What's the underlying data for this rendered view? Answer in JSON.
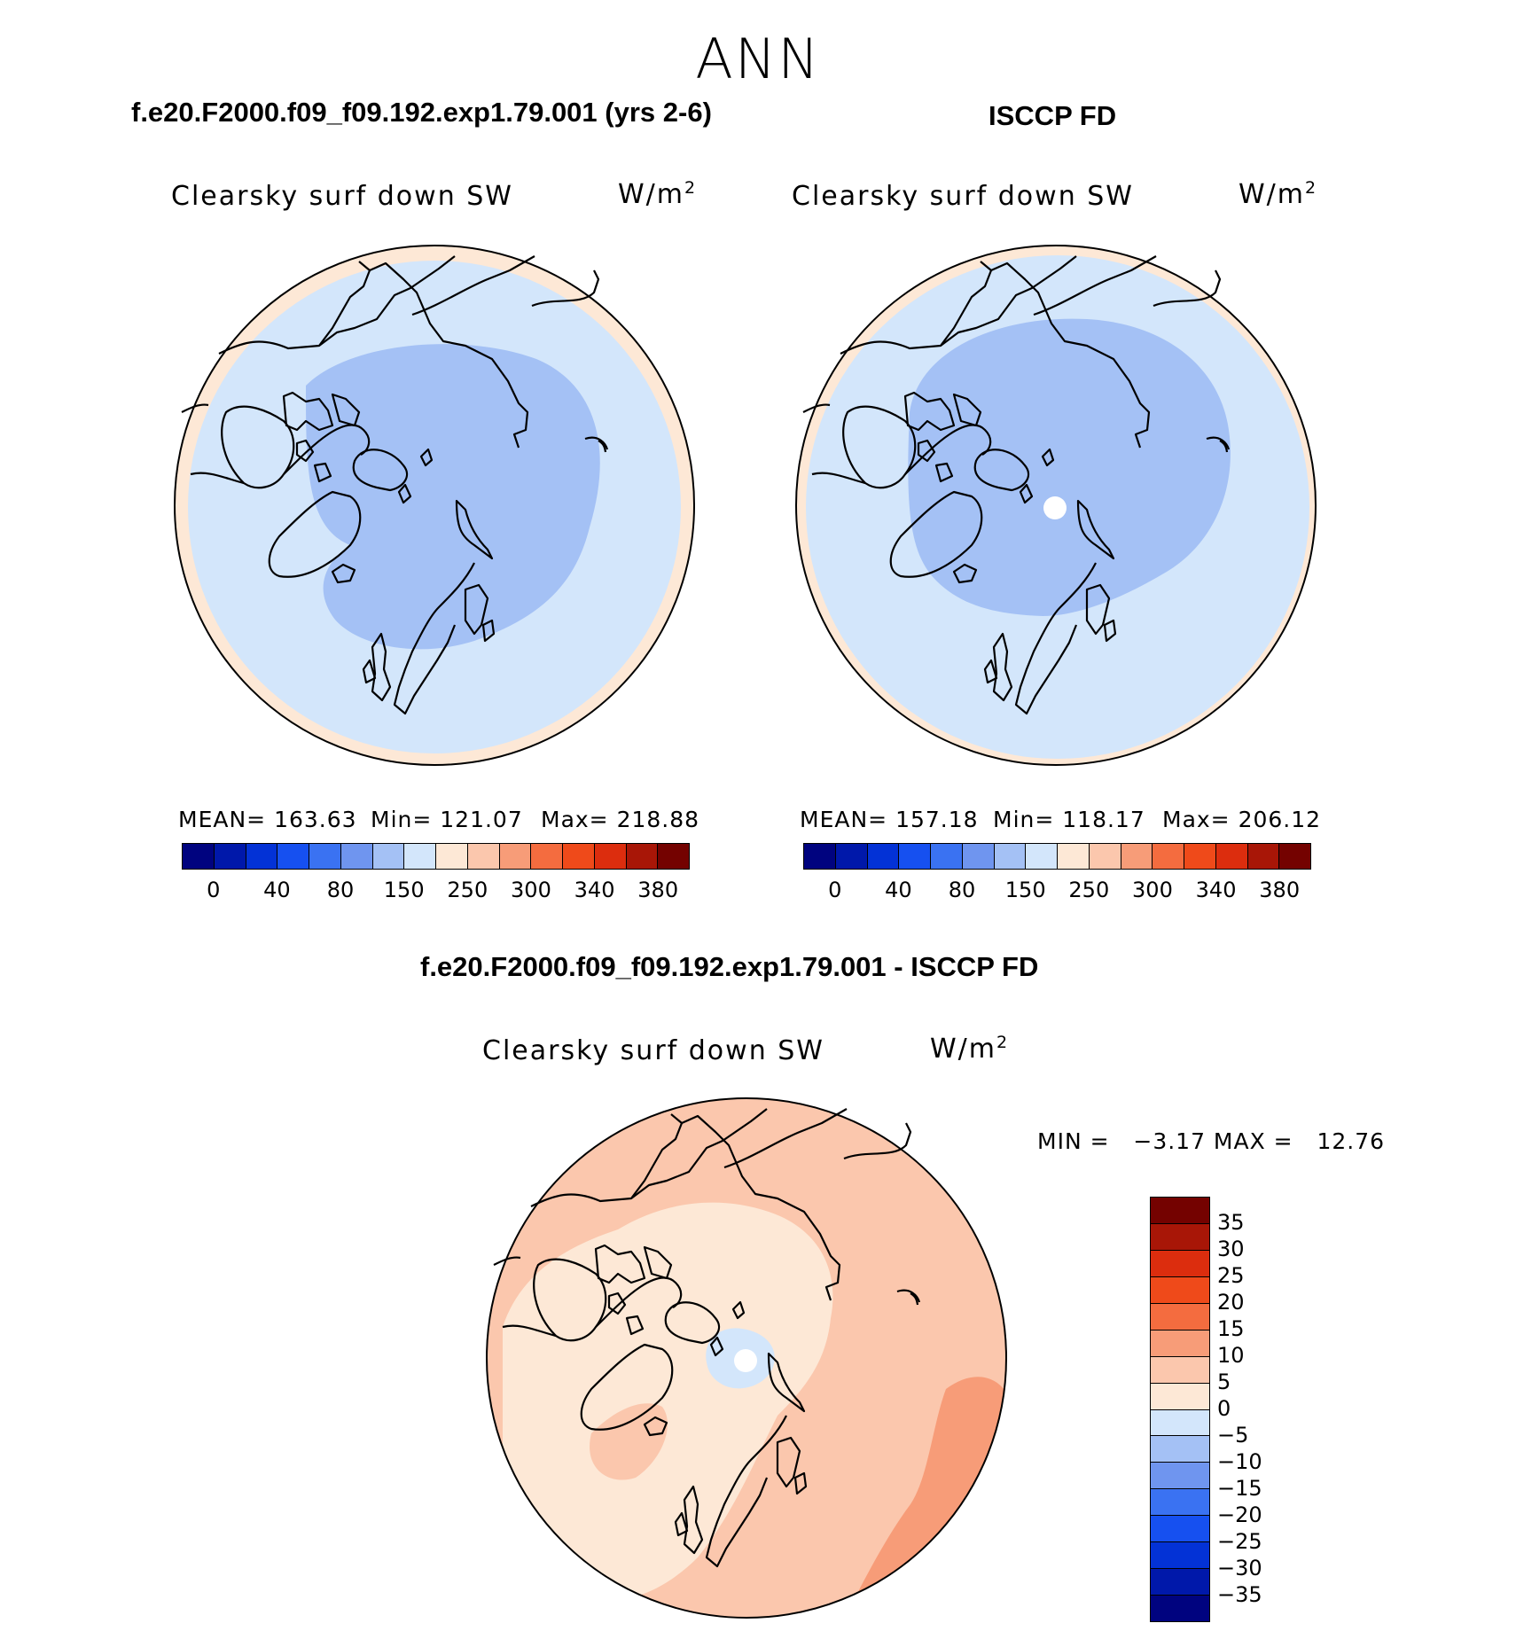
{
  "season": "ANN",
  "panels": [
    {
      "id": "model",
      "title": "f.e20.F2000.f09_f09.192.exp1.79.001 (yrs 2-6)",
      "variable": "Clearsky surf down SW",
      "units": "W/m",
      "units_sup": "2",
      "mean_text": "MEAN= 163.63",
      "min_text": "Min= 121.07",
      "max_text": "Max= 218.88"
    },
    {
      "id": "obs",
      "title": "ISCCP FD",
      "variable": "Clearsky surf down SW",
      "units": "W/m",
      "units_sup": "2",
      "mean_text": "MEAN= 157.18",
      "min_text": "Min= 118.17",
      "max_text": "Max= 206.12"
    },
    {
      "id": "diff",
      "title": "f.e20.F2000.f09_f09.192.exp1.79.001 - ISCCP FD",
      "variable": "Clearsky surf down SW",
      "units": "W/m",
      "units_sup": "2",
      "minmax_text": "MIN =   −3.17 MAX =   12.76"
    }
  ],
  "chart_data": [
    {
      "type": "heatmap",
      "projection": "north-polar-stereographic",
      "title": "Clearsky surf down SW",
      "units": "W/m2",
      "mean": 163.63,
      "min": 121.07,
      "max": 218.88,
      "levels": [
        0,
        20,
        40,
        60,
        80,
        100,
        150,
        200,
        250,
        275,
        300,
        320,
        340,
        360,
        380
      ],
      "tick_labels": [
        "0",
        "40",
        "80",
        "150",
        "250",
        "300",
        "340",
        "380"
      ],
      "colors": [
        "#00037f",
        "#0018aa",
        "#0332d6",
        "#1650f0",
        "#3a72f2",
        "#6f95ef",
        "#a4c1f5",
        "#d3e6fb",
        "#fde8d6",
        "#fbc7ad",
        "#f79c78",
        "#f46c3f",
        "#ef4a1a",
        "#dc2d0e",
        "#a81607",
        "#740200"
      ]
    },
    {
      "type": "heatmap",
      "projection": "north-polar-stereographic",
      "title": "Clearsky surf down SW",
      "units": "W/m2",
      "mean": 157.18,
      "min": 118.17,
      "max": 206.12,
      "levels": [
        0,
        20,
        40,
        60,
        80,
        100,
        150,
        200,
        250,
        275,
        300,
        320,
        340,
        360,
        380
      ],
      "tick_labels": [
        "0",
        "40",
        "80",
        "150",
        "250",
        "300",
        "340",
        "380"
      ],
      "colors": [
        "#00037f",
        "#0018aa",
        "#0332d6",
        "#1650f0",
        "#3a72f2",
        "#6f95ef",
        "#a4c1f5",
        "#d3e6fb",
        "#fde8d6",
        "#fbc7ad",
        "#f79c78",
        "#f46c3f",
        "#ef4a1a",
        "#dc2d0e",
        "#a81607",
        "#740200"
      ]
    },
    {
      "type": "heatmap",
      "projection": "north-polar-stereographic",
      "title": "Clearsky surf down SW",
      "units": "W/m2",
      "min": -3.17,
      "max": 12.76,
      "levels": [
        -35,
        -30,
        -25,
        -20,
        -15,
        -10,
        -5,
        0,
        5,
        10,
        15,
        20,
        25,
        30,
        35
      ],
      "tick_labels": [
        "35",
        "30",
        "25",
        "20",
        "15",
        "10",
        "5",
        "0",
        "−5",
        "−10",
        "−15",
        "−20",
        "−25",
        "−30",
        "−35"
      ],
      "colors_top_to_bottom": [
        "#740200",
        "#a81607",
        "#dc2d0e",
        "#ef4a1a",
        "#f46c3f",
        "#f79c78",
        "#fbc7ad",
        "#fde8d6",
        "#d3e6fb",
        "#a4c1f5",
        "#6f95ef",
        "#3a72f2",
        "#1650f0",
        "#0332d6",
        "#0018aa",
        "#00037f"
      ]
    }
  ]
}
